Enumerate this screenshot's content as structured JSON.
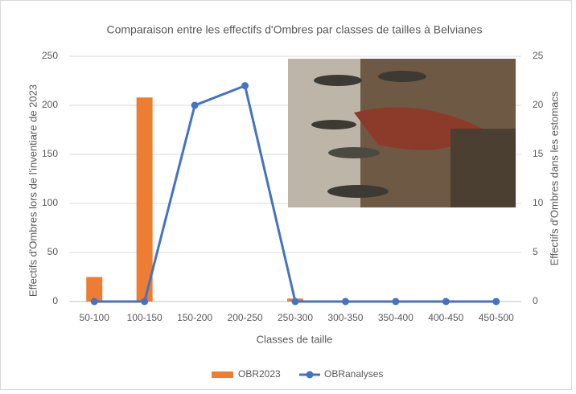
{
  "chart_data": {
    "type": "bar-line",
    "title": "Comparaison entre les effectifs d'Ombres par classes de tailles à Belvianes",
    "x_label": "Classes de taille",
    "y_label": "Effectifs d'Ombres lors de l'inventiare de 2023",
    "y2_label": "Effectifs d'Ombres dans les estomacs",
    "categories": [
      "50-100",
      "100-150",
      "150-200",
      "200-250",
      "250-300",
      "300-350",
      "350-400",
      "400-450",
      "450-500"
    ],
    "series": [
      {
        "name": "OBR2023",
        "type": "bar",
        "color": "#ed7d31",
        "values": [
          25,
          208,
          0,
          0,
          3,
          0,
          0,
          0,
          0
        ]
      },
      {
        "name": "OBRanalyses",
        "type": "line",
        "axis": "y2",
        "color": "#4472c4",
        "values": [
          0,
          0,
          20,
          22,
          0,
          0,
          0,
          0,
          0
        ]
      }
    ],
    "ylim": [
      0,
      250
    ],
    "yticks": [
      0,
      50,
      100,
      150,
      200,
      250
    ],
    "y2lim": [
      0,
      25
    ],
    "y2ticks": [
      0,
      5,
      10,
      15,
      20,
      25
    ],
    "grid": true,
    "legend": "bottom"
  }
}
